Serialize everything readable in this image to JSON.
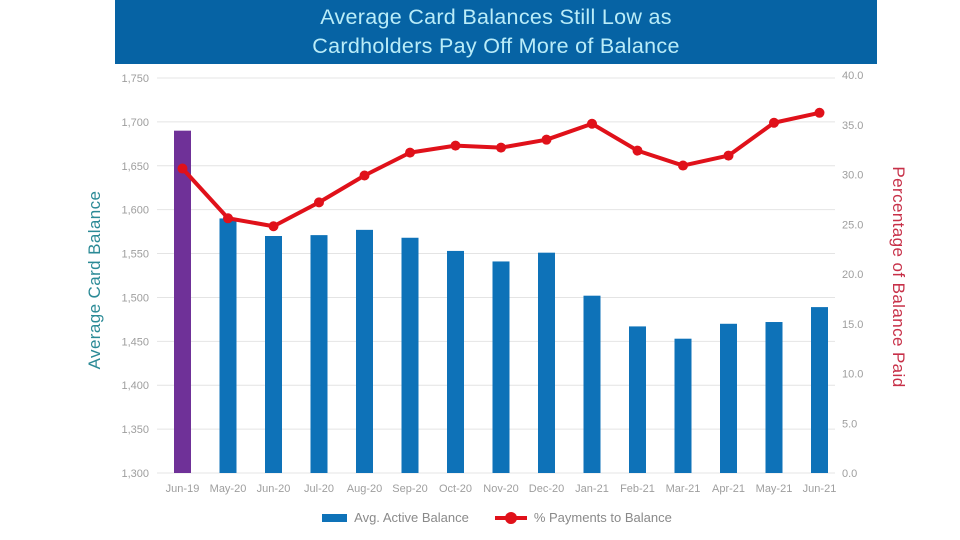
{
  "title": {
    "line1": "Average Card Balances Still Low as",
    "line2": "Cardholders Pay Off More of Balance"
  },
  "axes": {
    "left_title": "Average Card Balance",
    "right_title": "Percentage of Balance Paid"
  },
  "legend": {
    "bar_label": "Avg. Active Balance",
    "line_label": "% Payments to Balance"
  },
  "colors": {
    "banner_bg": "#0663a4",
    "banner_text": "#b9ecf8",
    "bar_blue": "#0e72b8",
    "bar_highlight_purple": "#6f3198",
    "line_red": "#e0111a",
    "left_axis_title": "#2b8a96",
    "right_axis_title": "#c73048",
    "tick_text": "#9e9e9e",
    "gridline": "#e4e4e4"
  },
  "chart_data": {
    "type": "bar",
    "subtype": "combo-bar-line-dual-axis",
    "title": "Average Card Balances Still Low as Cardholders Pay Off More of Balance",
    "categories": [
      "Jun-19",
      "May-20",
      "Jun-20",
      "Jul-20",
      "Aug-20",
      "Sep-20",
      "Oct-20",
      "Nov-20",
      "Dec-20",
      "Jan-21",
      "Feb-21",
      "Mar-21",
      "Apr-21",
      "May-21",
      "Jun-21"
    ],
    "series": [
      {
        "name": "Avg. Active Balance",
        "type": "bar",
        "axis": "left",
        "highlight_index": 0,
        "values": [
          1690,
          1590,
          1570,
          1571,
          1577,
          1568,
          1553,
          1541,
          1551,
          1502,
          1467,
          1453,
          1470,
          1472,
          1489
        ]
      },
      {
        "name": "% Payments to Balance",
        "type": "line",
        "axis": "right",
        "values": [
          30.6,
          25.6,
          24.8,
          27.2,
          29.9,
          32.2,
          32.9,
          32.7,
          33.5,
          35.1,
          32.4,
          30.9,
          31.9,
          35.2,
          36.2
        ]
      }
    ],
    "left_axis": {
      "label": "Average Card Balance",
      "min": 1300,
      "max": 1750,
      "step": 50,
      "tick_labels": [
        "1,300",
        "1,350",
        "1,400",
        "1,450",
        "1,500",
        "1,550",
        "1,600",
        "1,650",
        "1,700",
        "1,750"
      ]
    },
    "right_axis": {
      "label": "Percentage of Balance Paid",
      "min": 0,
      "max": 40,
      "step": 5,
      "tick_labels": [
        "0.0",
        "5.0",
        "10.0",
        "15.0",
        "20.0",
        "25.0",
        "30.0",
        "35.0",
        "40.0"
      ]
    },
    "grid": true,
    "legend_position": "bottom"
  }
}
